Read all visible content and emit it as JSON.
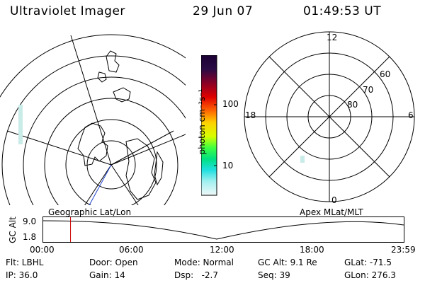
{
  "header": {
    "app_title": "Ultraviolet Imager",
    "date": "29 Jun 07",
    "time": "01:49:53 UT"
  },
  "colorbar": {
    "unit_label": "photon cm⁻²s⁻¹",
    "ticks": [
      "100",
      "10"
    ]
  },
  "polar_plot": {
    "mlt_labels": {
      "top": "12",
      "left": "18",
      "right": "6",
      "bottom": "0"
    },
    "lat_labels": [
      "60",
      "70",
      "80"
    ]
  },
  "timeline": {
    "left_caption": "Geographic Lat/Lon",
    "right_caption": "Apex MLat/MLT",
    "y_axis_label": "GC Alt",
    "y_ticks": [
      "9.0",
      "1.8"
    ],
    "x_ticks": [
      "00:00",
      "06:00",
      "12:00",
      "18:00",
      "23:59"
    ],
    "marker_time": "01:49",
    "marker_color": "#cc0000"
  },
  "footer": {
    "row1": [
      "Flt: LBHL",
      "Door: Open",
      "Mode: Normal",
      "GC Alt: 9.1 Re",
      "GLat: -71.5"
    ],
    "row2": [
      "IP: 36.0",
      "Gain: 14",
      "Dsp:   -2.7",
      "Seq: 39",
      "GLon: 276.3"
    ]
  }
}
